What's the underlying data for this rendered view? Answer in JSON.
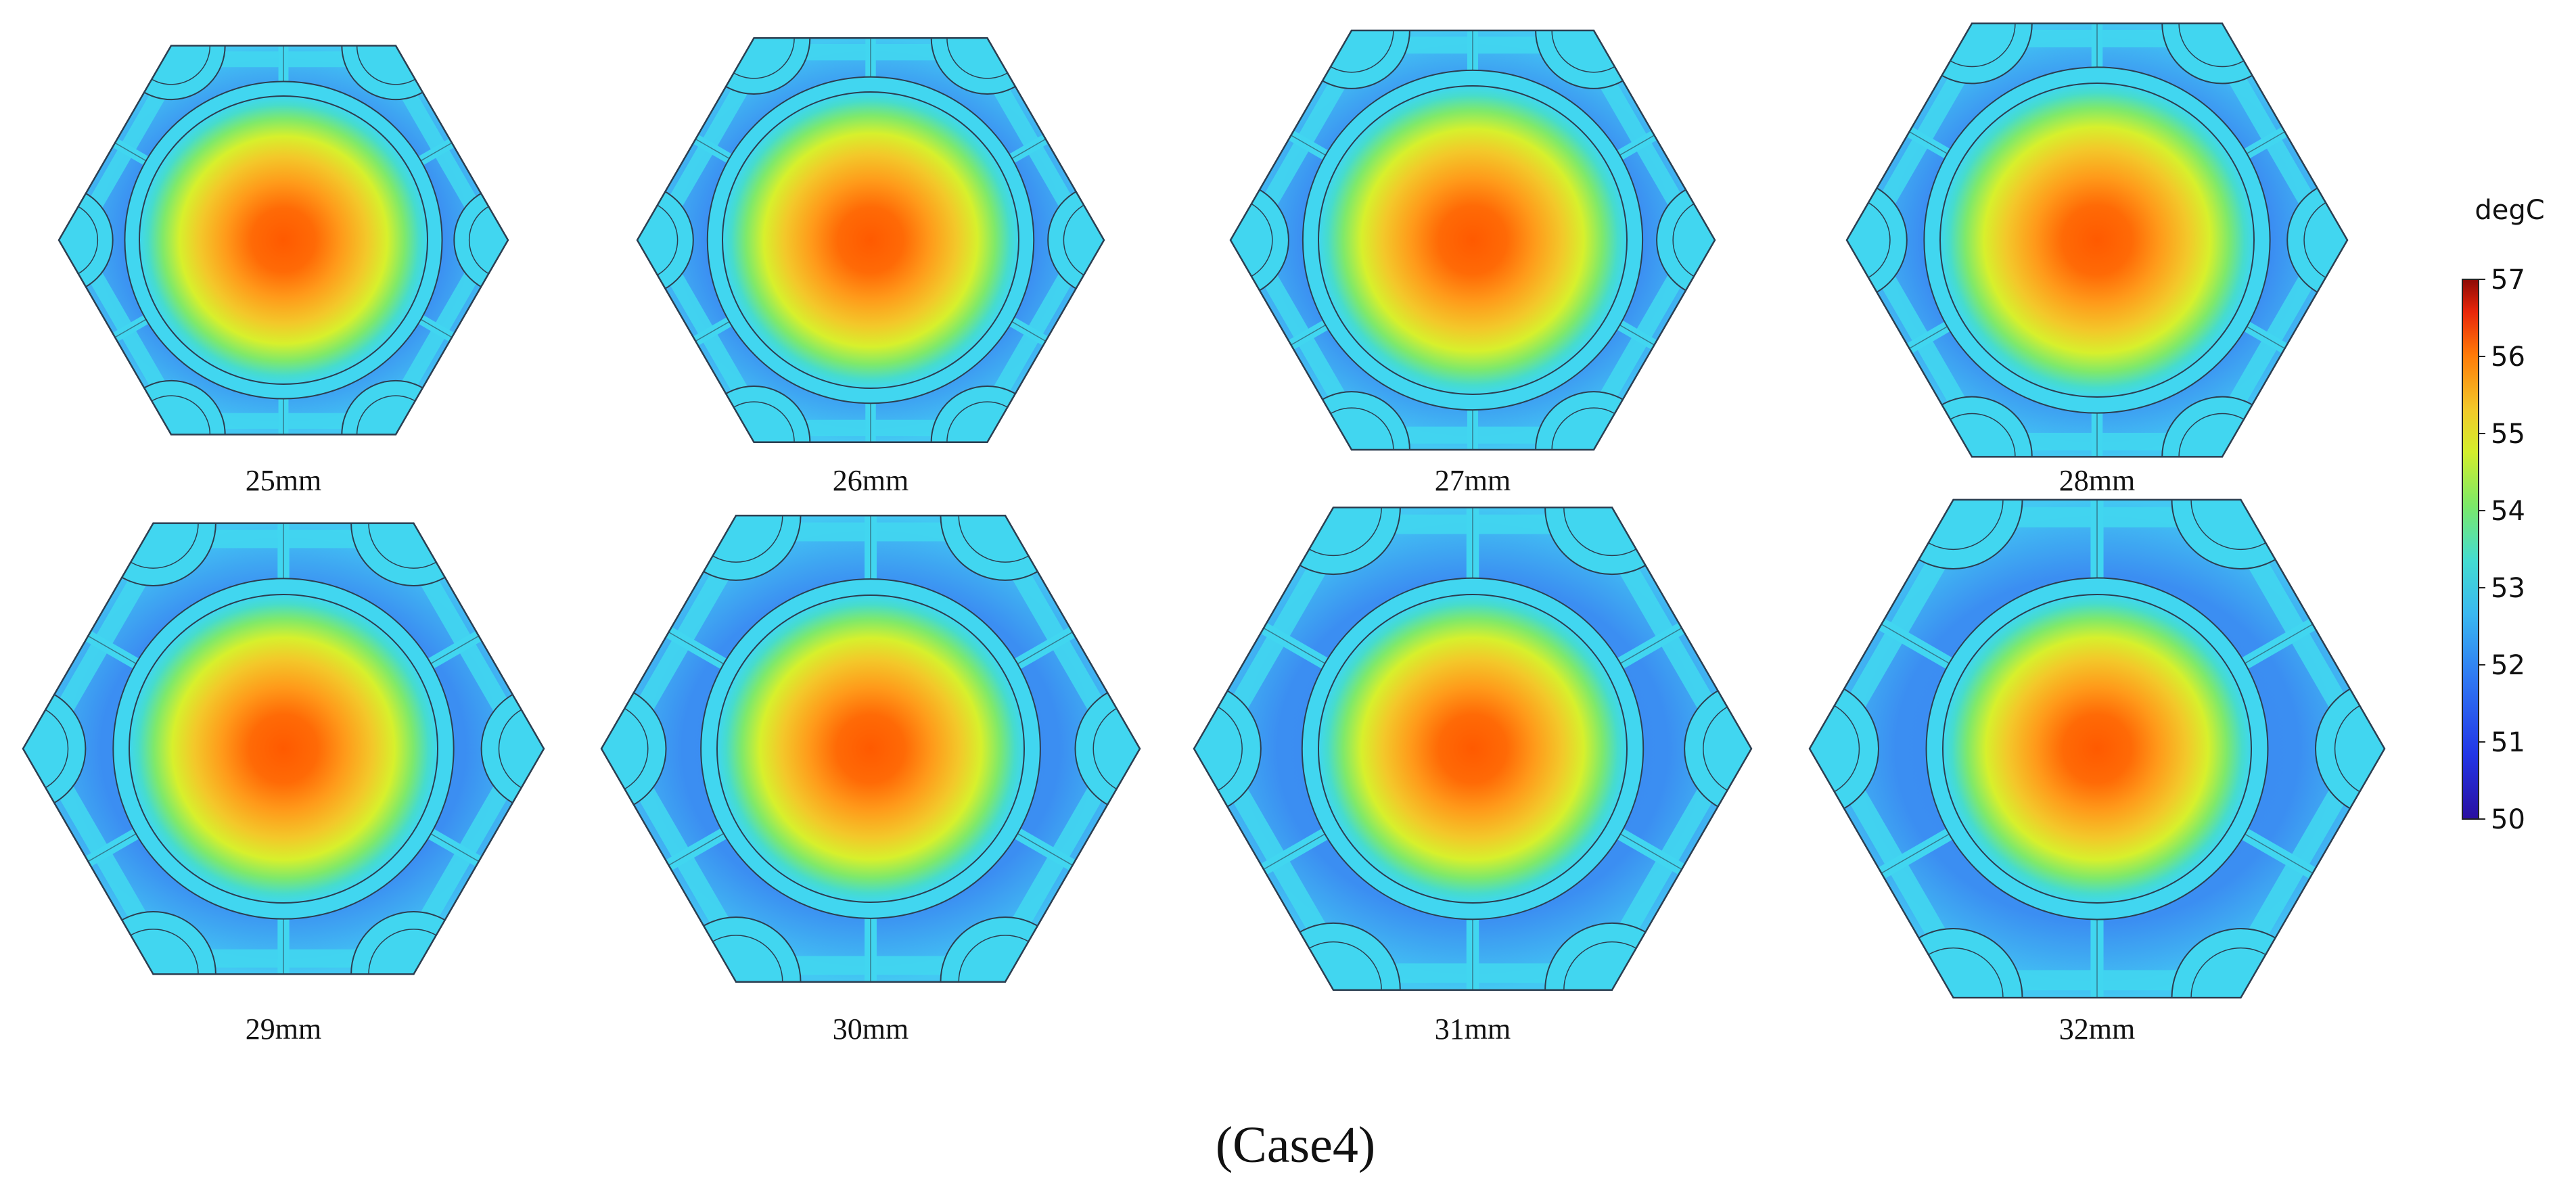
{
  "figure": {
    "caption": "(Case4)",
    "colorbar": {
      "unit": "degC",
      "min": 50,
      "max": 57,
      "ticks": [
        "57",
        "56",
        "55",
        "54",
        "53",
        "52",
        "51",
        "50"
      ]
    },
    "panels": [
      {
        "label": "25mm"
      },
      {
        "label": "26mm"
      },
      {
        "label": "27mm"
      },
      {
        "label": "28mm"
      },
      {
        "label": "29mm"
      },
      {
        "label": "30mm"
      },
      {
        "label": "31mm"
      },
      {
        "label": "32mm"
      }
    ]
  },
  "colors": {
    "hot_core": "#ff5a00",
    "warm": "#f2c02a",
    "mid_yellow": "#e9f12e",
    "cyan_ring": "#41d6f0",
    "cool_fill": "#3a87f2",
    "edge": "#2c3e50"
  }
}
